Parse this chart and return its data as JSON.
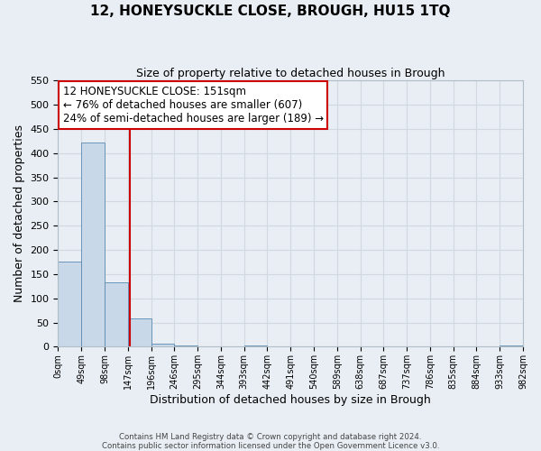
{
  "title": "12, HONEYSUCKLE CLOSE, BROUGH, HU15 1TQ",
  "subtitle": "Size of property relative to detached houses in Brough",
  "xlabel": "Distribution of detached houses by size in Brough",
  "ylabel": "Number of detached properties",
  "bar_color": "#c8d8e8",
  "bar_edge_color": "#5a8ab0",
  "bin_width": 49,
  "bin_starts": [
    0,
    49,
    98,
    147,
    196,
    245,
    294,
    343,
    392,
    441,
    490,
    539,
    588,
    637,
    686,
    735,
    784,
    833,
    882,
    931
  ],
  "bar_heights": [
    175,
    422,
    133,
    58,
    7,
    2,
    0,
    0,
    2,
    0,
    0,
    0,
    0,
    0,
    0,
    0,
    0,
    0,
    0,
    2
  ],
  "tick_labels": [
    "0sqm",
    "49sqm",
    "98sqm",
    "147sqm",
    "196sqm",
    "246sqm",
    "295sqm",
    "344sqm",
    "393sqm",
    "442sqm",
    "491sqm",
    "540sqm",
    "589sqm",
    "638sqm",
    "687sqm",
    "737sqm",
    "786sqm",
    "835sqm",
    "884sqm",
    "933sqm",
    "982sqm"
  ],
  "ylim": [
    0,
    550
  ],
  "yticks": [
    0,
    50,
    100,
    150,
    200,
    250,
    300,
    350,
    400,
    450,
    500,
    550
  ],
  "property_size": 151,
  "vline_color": "#cc0000",
  "annotation_title": "12 HONEYSUCKLE CLOSE: 151sqm",
  "annotation_line1": "← 76% of detached houses are smaller (607)",
  "annotation_line2": "24% of semi-detached houses are larger (189) →",
  "annotation_box_color": "#ffffff",
  "annotation_box_edge": "#cc0000",
  "grid_color": "#d0d8e0",
  "background_color": "#e8eef4",
  "footer_line1": "Contains HM Land Registry data © Crown copyright and database right 2024.",
  "footer_line2": "Contains public sector information licensed under the Open Government Licence v3.0."
}
